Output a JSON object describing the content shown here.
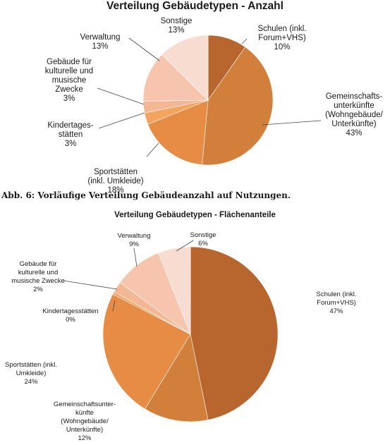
{
  "caption": "Abb. 6: Vorläufige Verteilung Gebäudeanzahl auf Nutzungen.",
  "chart_data": [
    {
      "type": "pie",
      "title": "Verteilung Gebäudetypen - Anzahl",
      "slices": [
        {
          "lines": [
            "Schulen (inkl.",
            "Forum+VHS)"
          ],
          "pct_label": "10%",
          "value": 10,
          "color": "#b8662d"
        },
        {
          "lines": [
            "Gemeinschafts-",
            "unterkünfte",
            "(Wohngebäude/",
            "Unterkünfte)"
          ],
          "pct_label": "43%",
          "value": 43,
          "color": "#d17f3a"
        },
        {
          "lines": [
            "Sportstätten",
            "(inkl. Umkleide)"
          ],
          "pct_label": "18%",
          "value": 18,
          "color": "#e68c45"
        },
        {
          "lines": [
            "Kindertages-",
            "stätten"
          ],
          "pct_label": "3%",
          "value": 3,
          "color": "#f5a460"
        },
        {
          "lines": [
            "Gebäude für",
            "kulturelle und",
            "musische",
            "Zwecke"
          ],
          "pct_label": "3%",
          "value": 3,
          "color": "#f4b793"
        },
        {
          "lines": [
            "Verwaltung"
          ],
          "pct_label": "13%",
          "value": 13,
          "color": "#f7c5ad"
        },
        {
          "lines": [
            "Sonstige"
          ],
          "pct_label": "13%",
          "value": 13,
          "color": "#f8dccf"
        }
      ]
    },
    {
      "type": "pie",
      "title": "Verteilung Gebäudetypen - Flächenanteile",
      "slices": [
        {
          "lines": [
            "Schulen (inkl.",
            "Forum+VHS)"
          ],
          "pct_label": "47%",
          "value": 47,
          "color": "#b8662d"
        },
        {
          "lines": [
            "Gemeinschaftsunter-",
            "künfte",
            "(Wohngebäude/",
            "Unterkünfte)"
          ],
          "pct_label": "12%",
          "value": 12,
          "color": "#d17f3a"
        },
        {
          "lines": [
            "Sportstätten (inkl.",
            "Umkleide)"
          ],
          "pct_label": "24%",
          "value": 24,
          "color": "#e68c45"
        },
        {
          "lines": [
            "Kindertagesstätten"
          ],
          "pct_label": "0%",
          "value": 0.5,
          "color": "#f5a460"
        },
        {
          "lines": [
            "Gebäude für",
            "kulturelle und",
            "musische Zwecke"
          ],
          "pct_label": "2%",
          "value": 2,
          "color": "#f4b793"
        },
        {
          "lines": [
            "Verwaltung"
          ],
          "pct_label": "9%",
          "value": 9,
          "color": "#f7c5ad"
        },
        {
          "lines": [
            "Sonstige"
          ],
          "pct_label": "6%",
          "value": 6,
          "color": "#f8dccf"
        }
      ]
    }
  ]
}
